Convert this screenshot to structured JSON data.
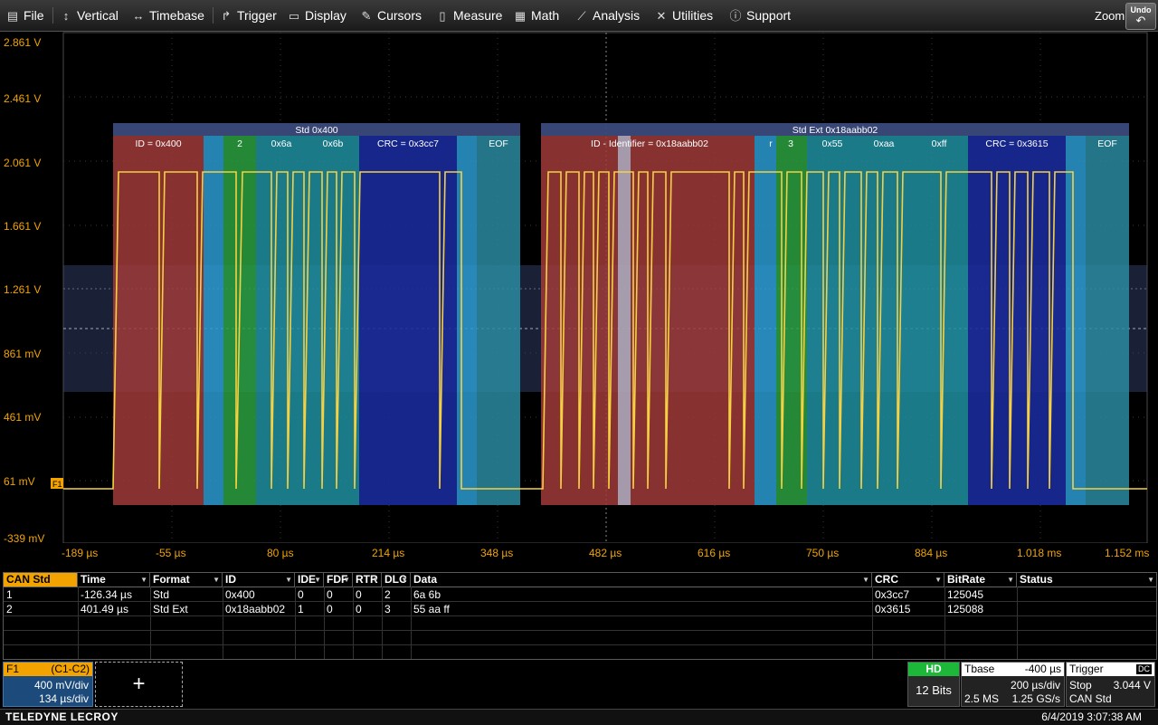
{
  "menu": {
    "file": "File",
    "vertical": "Vertical",
    "timebase": "Timebase",
    "trigger": "Trigger",
    "display": "Display",
    "cursors": "Cursors",
    "measure": "Measure",
    "math": "Math",
    "analysis": "Analysis",
    "utilities": "Utilities",
    "support": "Support",
    "zoom": "Zoom",
    "undo": "Undo"
  },
  "icons": {
    "file": "clipboard-icon",
    "vertical": "vertical-arrows-icon",
    "timebase": "horizontal-arrows-icon",
    "trigger": "trigger-icon",
    "display": "monitor-icon",
    "cursors": "cursors-icon",
    "measure": "measure-icon",
    "math": "calculator-icon",
    "analysis": "chart-icon",
    "utilities": "tools-icon",
    "support": "info-icon",
    "undo": "undo-arrow-icon"
  },
  "colors": {
    "trace": "#f5d142",
    "axis_label": "#f2a300",
    "id_field": "#a03a3a",
    "data_field": "#1f8fa0",
    "crc_field": "#1a2a9a",
    "eof_field": "#2a8aa0",
    "dlc_field": "#2aa040",
    "header_bar": "#3a4a7a",
    "f1_header": "#f2a300",
    "hd_badge": "#1db83a"
  },
  "yaxis": {
    "labels": [
      "2.861 V",
      "2.461 V",
      "2.061 V",
      "1.661 V",
      "1.261 V",
      "861 mV",
      "461 mV",
      "61 mV",
      "-339 mV"
    ],
    "trace_marker": "F1"
  },
  "xaxis": {
    "labels": [
      "-189 µs",
      "-55 µs",
      "80 µs",
      "214 µs",
      "348 µs",
      "482 µs",
      "616 µs",
      "750 µs",
      "884 µs",
      "1.018 ms",
      "1.152 ms"
    ]
  },
  "decode": {
    "frames": [
      {
        "title": "Std 0x400",
        "fields": [
          {
            "label": "ID = 0x400",
            "kind": "id"
          },
          {
            "label": "2",
            "kind": "dlc"
          },
          {
            "label": "0x6a",
            "kind": "data"
          },
          {
            "label": "0x6b",
            "kind": "data"
          },
          {
            "label": "CRC = 0x3cc7",
            "kind": "crc"
          },
          {
            "label": "EOF",
            "kind": "eof"
          }
        ]
      },
      {
        "title": "Std Ext 0x18aabb02",
        "fields": [
          {
            "label": "ID - Identifier = 0x18aabb02",
            "kind": "id"
          },
          {
            "label": "r",
            "kind": "ctrl"
          },
          {
            "label": "3",
            "kind": "dlc"
          },
          {
            "label": "0x55",
            "kind": "data"
          },
          {
            "label": "0xaa",
            "kind": "data"
          },
          {
            "label": "0xff",
            "kind": "data"
          },
          {
            "label": "CRC = 0x3615",
            "kind": "crc"
          },
          {
            "label": "EOF",
            "kind": "eof"
          }
        ]
      }
    ]
  },
  "table": {
    "name": "CAN Std",
    "headers": [
      "Time",
      "Format",
      "ID",
      "IDE",
      "FDF",
      "RTR",
      "DLC",
      "Data",
      "CRC",
      "BitRate",
      "Status"
    ],
    "rows": [
      {
        "idx": "1",
        "time": "-126.34 µs",
        "format": "Std",
        "id": "0x400",
        "ide": "0",
        "fdf": "0",
        "rtr": "0",
        "dlc": "2",
        "data": "6a 6b",
        "crc": "0x3cc7",
        "bitrate": "125045",
        "status": ""
      },
      {
        "idx": "2",
        "time": "401.49 µs",
        "format": "Std Ext",
        "id": "0x18aabb02",
        "ide": "1",
        "fdf": "0",
        "rtr": "0",
        "dlc": "3",
        "data": "55 aa ff",
        "crc": "0x3615",
        "bitrate": "125088",
        "status": ""
      }
    ]
  },
  "f1": {
    "name": "F1",
    "source": "(C1-C2)",
    "vdiv": "400 mV/div",
    "tdiv": "134 µs/div"
  },
  "add": {
    "label": "+"
  },
  "hd": {
    "badge": "HD",
    "bits": "12 Bits"
  },
  "tbase": {
    "label": "Tbase",
    "value": "-400 µs",
    "div": "200 µs/div",
    "samples": "2.5 MS",
    "rate": "1.25 GS/s"
  },
  "trigger": {
    "label": "Trigger",
    "coupling": "DC",
    "mode": "Stop",
    "level": "3.044 V",
    "type": "CAN Std"
  },
  "footer": {
    "brand": "TELEDYNE LECROY",
    "datetime": "6/4/2019 3:07:38 AM"
  }
}
